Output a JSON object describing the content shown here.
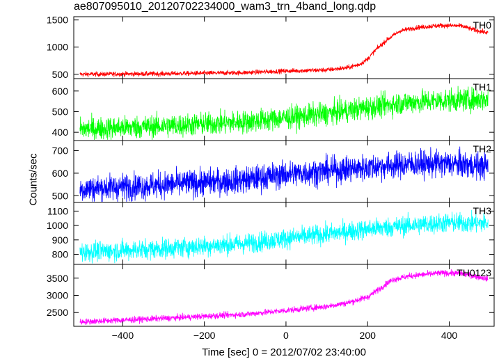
{
  "chart_data": {
    "type": "line",
    "title": "ae807095010_20120702234000_wam3_trn_4band_long.qdp",
    "xlabel": "Time [sec] 0 = 2012/07/02 23:40:00",
    "ylabel": "Counts/sec",
    "xlim": [
      -520,
      510
    ],
    "x_range": [
      -505,
      495
    ],
    "xticks": [
      -400,
      -200,
      0,
      200,
      400
    ],
    "panels": [
      {
        "name": "TH0",
        "color": "#ff0000",
        "ylim": [
          420,
          1560
        ],
        "yticks": [
          500,
          1000,
          1500
        ],
        "noise": 22,
        "trend_x": [
          -505,
          -300,
          -100,
          0,
          100,
          150,
          180,
          200,
          220,
          250,
          280,
          320,
          380,
          430,
          460,
          495
        ],
        "trend_y": [
          500,
          510,
          530,
          560,
          580,
          620,
          680,
          780,
          950,
          1150,
          1300,
          1360,
          1400,
          1390,
          1320,
          1260
        ]
      },
      {
        "name": "TH1",
        "color": "#00ff00",
        "ylim": [
          360,
          660
        ],
        "yticks": [
          400,
          500,
          600
        ],
        "noise": 28,
        "trend_x": [
          -505,
          -300,
          -100,
          0,
          100,
          200,
          300,
          400,
          495
        ],
        "trend_y": [
          415,
          430,
          450,
          470,
          490,
          520,
          545,
          555,
          560
        ]
      },
      {
        "name": "TH2",
        "color": "#0000ff",
        "ylim": [
          470,
          745
        ],
        "yticks": [
          500,
          600,
          700
        ],
        "noise": 30,
        "trend_x": [
          -505,
          -300,
          -100,
          0,
          100,
          200,
          300,
          400,
          495
        ],
        "trend_y": [
          530,
          548,
          570,
          595,
          610,
          625,
          640,
          642,
          630
        ]
      },
      {
        "name": "TH3",
        "color": "#00ffff",
        "ylim": [
          730,
          1160
        ],
        "yticks": [
          800,
          900,
          1000,
          1100
        ],
        "noise": 35,
        "trend_x": [
          -505,
          -300,
          -100,
          0,
          100,
          200,
          300,
          400,
          495
        ],
        "trend_y": [
          815,
          840,
          875,
          910,
          940,
          975,
          1000,
          1020,
          1015
        ]
      },
      {
        "name": "TH0123",
        "color": "#ff00ff",
        "ylim": [
          2100,
          3900
        ],
        "yticks": [
          2500,
          3000,
          3500
        ],
        "noise": 45,
        "trend_x": [
          -505,
          -300,
          -100,
          0,
          100,
          150,
          200,
          230,
          260,
          300,
          380,
          430,
          495
        ],
        "trend_y": [
          2230,
          2330,
          2450,
          2560,
          2680,
          2780,
          2950,
          3200,
          3450,
          3560,
          3650,
          3640,
          3480
        ]
      }
    ]
  }
}
